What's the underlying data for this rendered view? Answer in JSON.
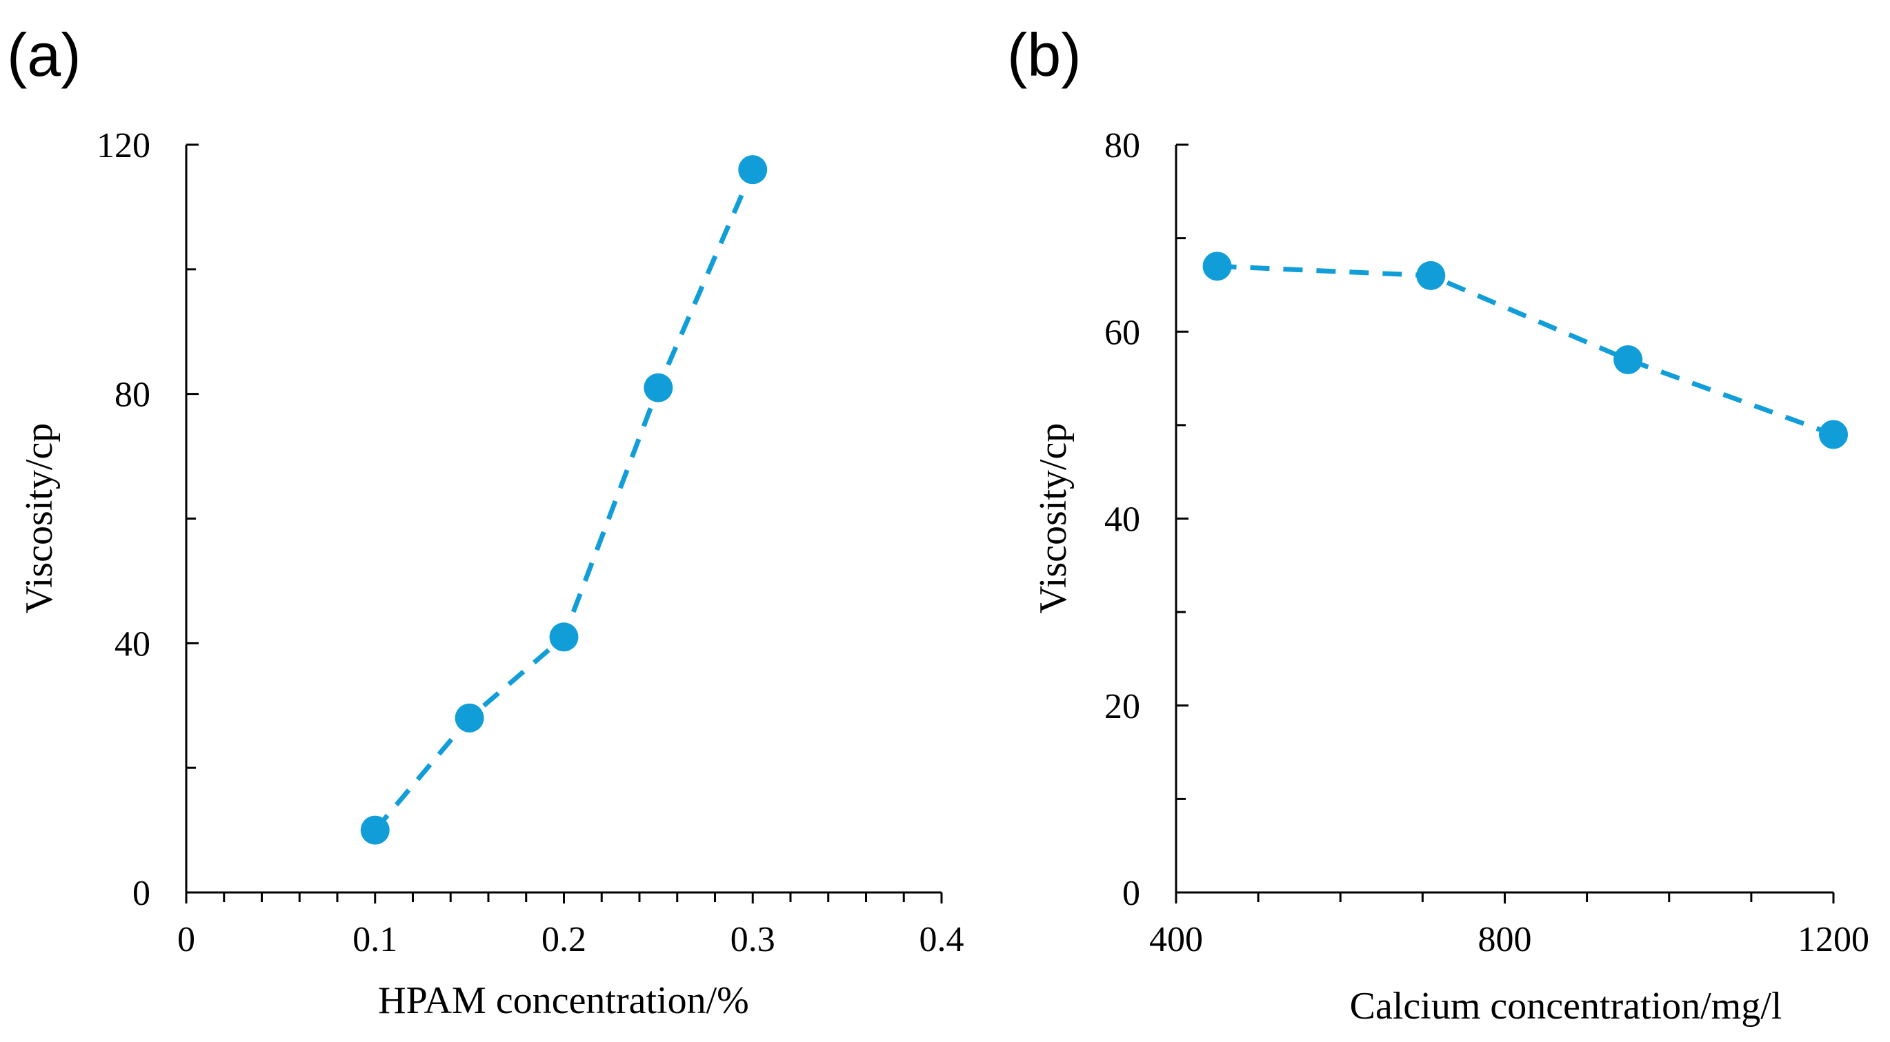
{
  "colors": {
    "series": "#119ed8",
    "axis": "#000000"
  },
  "chart_data": [
    {
      "panel_label": "(a)",
      "type": "line",
      "xlabel": "HPAM concentration/%",
      "ylabel": "Viscosity/cp",
      "xlim": [
        0,
        0.4
      ],
      "ylim": [
        0,
        120
      ],
      "xticks": [
        0,
        0.1,
        0.2,
        0.3,
        0.4
      ],
      "xtick_labels": [
        "0",
        "0.1",
        "0.2",
        "0.3",
        "0.4"
      ],
      "yticks": [
        0,
        40,
        80,
        120
      ],
      "ytick_labels": [
        "0",
        "40",
        "80",
        "120"
      ],
      "x_minor_step": 0.02,
      "y_minor_step": 20,
      "series": [
        {
          "name": "Viscosity",
          "x": [
            0.1,
            0.15,
            0.2,
            0.25,
            0.3
          ],
          "y": [
            10,
            28,
            41,
            81,
            116
          ]
        }
      ]
    },
    {
      "panel_label": "(b)",
      "type": "line",
      "xlabel": "Calcium concentration/mg/l",
      "ylabel": "Viscosity/cp",
      "xlim": [
        400,
        1200
      ],
      "ylim": [
        0,
        80
      ],
      "xticks": [
        400,
        800,
        1200
      ],
      "xtick_labels": [
        "400",
        "800",
        "1200"
      ],
      "yticks": [
        0,
        20,
        40,
        60,
        80
      ],
      "ytick_labels": [
        "0",
        "20",
        "40",
        "60",
        "80"
      ],
      "x_minor_step": 100,
      "y_minor_step": 10,
      "series": [
        {
          "name": "Viscosity",
          "x": [
            450,
            710,
            950,
            1200
          ],
          "y": [
            67,
            66,
            57,
            49
          ]
        }
      ]
    }
  ]
}
